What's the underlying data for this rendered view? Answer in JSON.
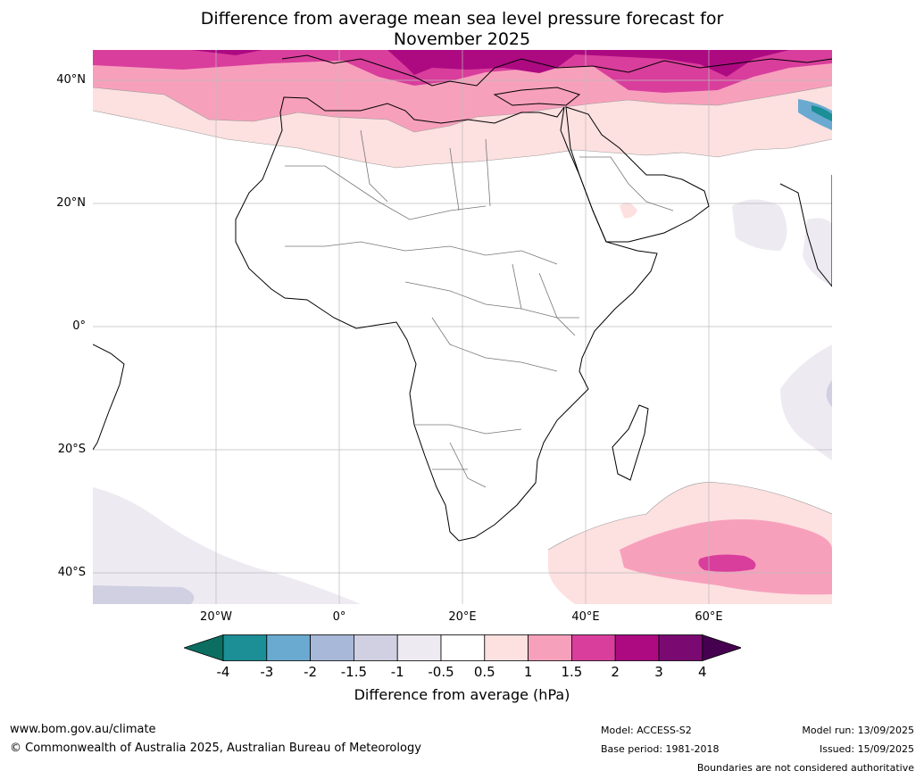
{
  "title_line1": "Difference from average mean sea level pressure forecast for",
  "title_line2": "November 2025",
  "map": {
    "region": "Africa",
    "lon_range": [
      -40,
      80
    ],
    "lat_range": [
      -45,
      45
    ],
    "lat_labels": [
      "40°N",
      "20°N",
      "0°",
      "20°S",
      "40°S"
    ],
    "lon_labels": [
      "20°W",
      "0°",
      "20°E",
      "40°E",
      "60°E"
    ],
    "gridlines": true
  },
  "colorbar": {
    "ticks": [
      "-4",
      "-3",
      "-2",
      "-1.5",
      "-1",
      "-0.5",
      "0.5",
      "1",
      "1.5",
      "2",
      "3",
      "4"
    ],
    "colors": [
      "#1b8e96",
      "#6aaad0",
      "#a8b8d8",
      "#d0d0e2",
      "#eeeaf2",
      "#ffffff",
      "#fde0e0",
      "#f7a0bc",
      "#d93e9c",
      "#ad0a82",
      "#7a0a72"
    ],
    "extend_low_color": "#0b6e60",
    "extend_high_color": "#450050",
    "title": "Difference from average (hPa)"
  },
  "footer": {
    "website": "www.bom.gov.au/climate",
    "copyright": "© Commonwealth of Australia 2025, Australian Bureau of Meteorology",
    "model": "Model: ACCESS-S2",
    "base_period": "Base period: 1981-2018",
    "model_run": "Model run: 13/09/2025",
    "issued": "Issued: 15/09/2025",
    "disclaimer": "Boundaries are not considered authoritative"
  }
}
